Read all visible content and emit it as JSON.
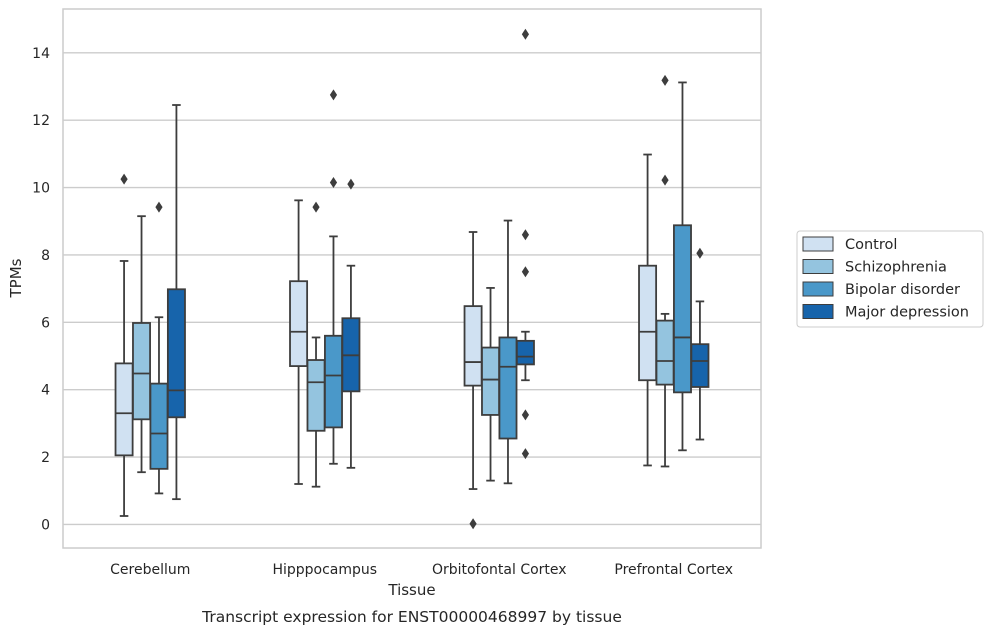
{
  "chart_data": {
    "type": "boxplot",
    "xlabel": "Tissue",
    "ylabel": "TPMs",
    "caption": "Transcript expression for ENST00000468997 by tissue",
    "ylim": [
      -0.7,
      15.3
    ],
    "yticks": [
      0,
      2,
      4,
      6,
      8,
      10,
      12,
      14
    ],
    "grid": "horizontal",
    "legend_position": "right",
    "categories": [
      "Cerebellum",
      "Hipppocampus",
      "Orbitofontal Cortex",
      "Prefrontal Cortex"
    ],
    "series": [
      {
        "name": "Control",
        "color": "#d0e1f2",
        "boxes": [
          {
            "whisker_low": 0.25,
            "q1": 2.05,
            "median": 3.3,
            "q3": 4.78,
            "whisker_high": 7.82,
            "outliers": [
              10.25
            ]
          },
          {
            "whisker_low": 1.2,
            "q1": 4.7,
            "median": 5.72,
            "q3": 7.22,
            "whisker_high": 9.62,
            "outliers": []
          },
          {
            "whisker_low": 1.05,
            "q1": 4.12,
            "median": 4.82,
            "q3": 6.48,
            "whisker_high": 8.68,
            "outliers": [
              0.02
            ]
          },
          {
            "whisker_low": 1.75,
            "q1": 4.28,
            "median": 5.72,
            "q3": 7.68,
            "whisker_high": 10.98,
            "outliers": []
          }
        ]
      },
      {
        "name": "Schizophrenia",
        "color": "#94c4df",
        "boxes": [
          {
            "whisker_low": 1.55,
            "q1": 3.12,
            "median": 4.48,
            "q3": 5.98,
            "whisker_high": 9.15,
            "outliers": []
          },
          {
            "whisker_low": 1.12,
            "q1": 2.78,
            "median": 4.22,
            "q3": 4.88,
            "whisker_high": 5.55,
            "outliers": [
              9.42
            ]
          },
          {
            "whisker_low": 1.3,
            "q1": 3.25,
            "median": 4.3,
            "q3": 5.25,
            "whisker_high": 7.02,
            "outliers": []
          },
          {
            "whisker_low": 1.72,
            "q1": 4.15,
            "median": 4.85,
            "q3": 6.05,
            "whisker_high": 6.25,
            "outliers": [
              10.22,
              13.18
            ]
          }
        ]
      },
      {
        "name": "Bipolar disorder",
        "color": "#4a98c9",
        "boxes": [
          {
            "whisker_low": 0.92,
            "q1": 1.65,
            "median": 2.7,
            "q3": 4.18,
            "whisker_high": 6.15,
            "outliers": [
              9.42
            ]
          },
          {
            "whisker_low": 1.8,
            "q1": 2.88,
            "median": 4.42,
            "q3": 5.6,
            "whisker_high": 8.55,
            "outliers": [
              10.15,
              12.75
            ]
          },
          {
            "whisker_low": 1.22,
            "q1": 2.55,
            "median": 4.68,
            "q3": 5.55,
            "whisker_high": 9.02,
            "outliers": []
          },
          {
            "whisker_low": 2.2,
            "q1": 3.92,
            "median": 5.55,
            "q3": 8.88,
            "whisker_high": 13.12,
            "outliers": []
          }
        ]
      },
      {
        "name": "Major depression",
        "color": "#1764ab",
        "boxes": [
          {
            "whisker_low": 0.75,
            "q1": 3.18,
            "median": 3.98,
            "q3": 6.98,
            "whisker_high": 12.45,
            "outliers": []
          },
          {
            "whisker_low": 1.68,
            "q1": 3.95,
            "median": 5.02,
            "q3": 6.12,
            "whisker_high": 7.68,
            "outliers": [
              10.1
            ]
          },
          {
            "whisker_low": 4.28,
            "q1": 4.75,
            "median": 4.98,
            "q3": 5.45,
            "whisker_high": 5.72,
            "outliers": [
              2.1,
              3.25,
              7.5,
              8.6,
              14.55
            ]
          },
          {
            "whisker_low": 2.52,
            "q1": 4.08,
            "median": 4.85,
            "q3": 5.35,
            "whisker_high": 6.62,
            "outliers": [
              8.05
            ]
          }
        ]
      }
    ]
  }
}
